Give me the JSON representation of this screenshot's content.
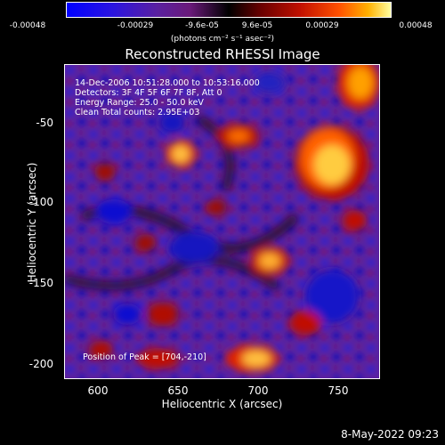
{
  "colorbar": {
    "ticks": [
      "-0.00048",
      "-0.00029",
      "-9.6e-05",
      "9.6e-05",
      "0.00029",
      "0.00048"
    ],
    "units": "(photons cm⁻² s⁻¹ asec⁻²)"
  },
  "title": "Reconstructed RHESSI Image",
  "annotations": {
    "time": "14-Dec-2006 10:51:28.000 to 10:53:16.000",
    "detectors": "Detectors: 3F 4F 5F 6F 7F 8F, Att 0",
    "energy": "Energy Range: 25.0 - 50.0 keV",
    "clean": "Clean    Total counts: 2.95E+03",
    "peak": "Position of Peak = [704,-210]"
  },
  "axes": {
    "xlabel": "Heliocentric X (arcsec)",
    "ylabel": "Heliocentric Y (arcsec)",
    "xticks": [
      "600",
      "650",
      "700",
      "750"
    ],
    "yticks": [
      "-50",
      "-100",
      "-150",
      "-200"
    ]
  },
  "timestamp": "8-May-2022 09:23"
}
